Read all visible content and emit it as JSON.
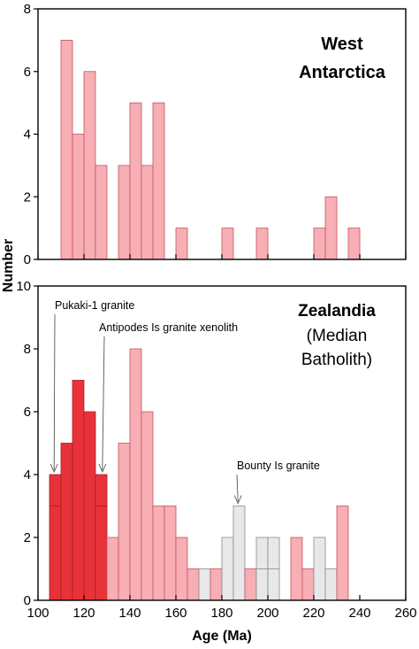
{
  "figure": {
    "ylabel": "Number",
    "xlabel": "Age (Ma)"
  },
  "colors": {
    "pink_fill": "#f7aeb4",
    "pink_stroke": "#c2555e",
    "red_fill": "#e8323a",
    "red_stroke": "#a61e24",
    "grey_fill": "#e8e8e8",
    "grey_stroke": "#8a8a8a",
    "axis": "#000000"
  },
  "chart_data": [
    {
      "type": "bar",
      "panel": "top",
      "title_lines": [
        "West",
        "Antarctica"
      ],
      "xlim": [
        100,
        260
      ],
      "ylim": [
        0,
        8
      ],
      "yticks": [
        0,
        2,
        4,
        6,
        8
      ],
      "xticks": [
        100,
        120,
        140,
        160,
        180,
        200,
        220,
        240,
        260
      ],
      "show_xtick_labels": false,
      "bin_width": 5,
      "bars": [
        {
          "x": 110,
          "count": 7,
          "group": "pink"
        },
        {
          "x": 115,
          "count": 4,
          "group": "pink"
        },
        {
          "x": 120,
          "count": 6,
          "group": "pink"
        },
        {
          "x": 125,
          "count": 3,
          "group": "pink"
        },
        {
          "x": 135,
          "count": 3,
          "group": "pink"
        },
        {
          "x": 140,
          "count": 5,
          "group": "pink"
        },
        {
          "x": 145,
          "count": 3,
          "group": "pink"
        },
        {
          "x": 150,
          "count": 5,
          "group": "pink"
        },
        {
          "x": 160,
          "count": 1,
          "group": "pink"
        },
        {
          "x": 180,
          "count": 1,
          "group": "pink"
        },
        {
          "x": 195,
          "count": 1,
          "group": "pink"
        },
        {
          "x": 220,
          "count": 1,
          "group": "pink"
        },
        {
          "x": 225,
          "count": 2,
          "group": "pink"
        },
        {
          "x": 235,
          "count": 1,
          "group": "pink"
        }
      ],
      "annotations": []
    },
    {
      "type": "bar",
      "panel": "bottom",
      "title_lines": [
        "Zealandia",
        "(Median",
        "Batholith)"
      ],
      "xlim": [
        100,
        260
      ],
      "ylim": [
        0,
        10
      ],
      "yticks": [
        0,
        2,
        4,
        6,
        8,
        10
      ],
      "xticks": [
        100,
        120,
        140,
        160,
        180,
        200,
        220,
        240,
        260
      ],
      "show_xtick_labels": true,
      "bin_width": 5,
      "bars": [
        {
          "x": 105,
          "count": 4,
          "group": "red",
          "divider": 3
        },
        {
          "x": 110,
          "count": 5,
          "group": "red"
        },
        {
          "x": 115,
          "count": 7,
          "group": "red"
        },
        {
          "x": 120,
          "count": 6,
          "group": "red"
        },
        {
          "x": 125,
          "count": 4,
          "group": "red",
          "divider": 3
        },
        {
          "x": 130,
          "count": 2,
          "group": "pink"
        },
        {
          "x": 135,
          "count": 5,
          "group": "pink"
        },
        {
          "x": 140,
          "count": 8,
          "group": "pink"
        },
        {
          "x": 145,
          "count": 6,
          "group": "pink"
        },
        {
          "x": 150,
          "count": 3,
          "group": "pink"
        },
        {
          "x": 155,
          "count": 3,
          "group": "pink"
        },
        {
          "x": 160,
          "count": 2,
          "group": "pink"
        },
        {
          "x": 165,
          "count": 1,
          "group": "pink"
        },
        {
          "x": 170,
          "count": 1,
          "group": "grey"
        },
        {
          "x": 175,
          "count": 1,
          "group": "pink"
        },
        {
          "x": 180,
          "count": 2,
          "group": "grey"
        },
        {
          "x": 185,
          "count": 3,
          "group": "grey"
        },
        {
          "x": 190,
          "count": 1,
          "group": "pink"
        },
        {
          "x": 195,
          "count": 2,
          "group": "grey",
          "divider": 1
        },
        {
          "x": 200,
          "count": 2,
          "group": "grey",
          "divider": 1
        },
        {
          "x": 210,
          "count": 2,
          "group": "pink"
        },
        {
          "x": 215,
          "count": 1,
          "group": "pink"
        },
        {
          "x": 220,
          "count": 2,
          "group": "grey"
        },
        {
          "x": 225,
          "count": 1,
          "group": "grey"
        },
        {
          "x": 230,
          "count": 3,
          "group": "pink"
        }
      ],
      "annotations": [
        {
          "text": "Pukaki-1 granite",
          "arrow_x": 107,
          "arrow_y": 4
        },
        {
          "text": "Antipodes Is granite xenolith",
          "arrow_x": 128,
          "arrow_y": 4
        },
        {
          "text": "Bounty Is granite",
          "arrow_x": 187,
          "arrow_y": 3
        }
      ]
    }
  ]
}
